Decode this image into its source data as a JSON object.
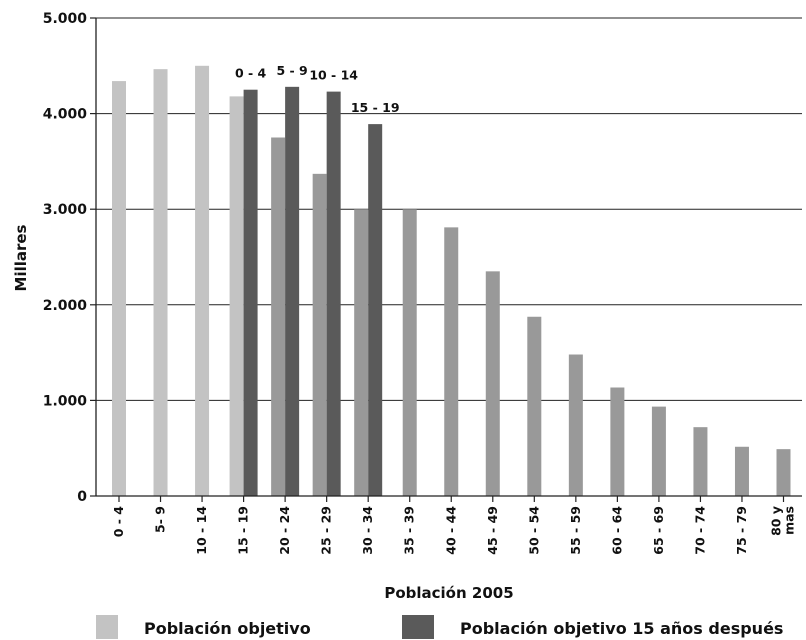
{
  "chart_data": {
    "type": "bar",
    "xlabel": "Población 2005",
    "ylabel": "Millares",
    "ylim": [
      0,
      5000
    ],
    "yticks": [
      0,
      1000,
      2000,
      3000,
      4000,
      5000
    ],
    "ytick_labels": [
      "0",
      "1.000",
      "2.000",
      "3.000",
      "4.000",
      "5.000"
    ],
    "grid": true,
    "legend_position": "bottom",
    "categories": [
      "0 - 4",
      "5- 9",
      "10 - 14",
      "15 - 19",
      "20 - 24",
      "25 - 29",
      "30 - 34",
      "35 - 39",
      "40 - 44",
      "45 - 49",
      "50 - 54",
      "55 - 59",
      "60 - 64",
      "65 - 69",
      "70 - 74",
      "75 - 79",
      "80 y mas"
    ],
    "series": [
      {
        "name": "Población objetivo",
        "values": [
          4340,
          4465,
          4500,
          4180,
          3750,
          3370,
          3000,
          3000,
          2810,
          2350,
          1875,
          1480,
          1135,
          935,
          720,
          515,
          490
        ],
        "colors": [
          "#c3c3c3",
          "#c3c3c3",
          "#c3c3c3",
          "#c3c3c3",
          "#999999",
          "#999999",
          "#999999",
          "#999999",
          "#999999",
          "#999999",
          "#999999",
          "#999999",
          "#999999",
          "#999999",
          "#999999",
          "#999999",
          "#999999"
        ]
      },
      {
        "name": "Población objetivo 15 años después",
        "values": [
          null,
          null,
          null,
          4250,
          4280,
          4230,
          3890,
          null,
          null,
          null,
          null,
          null,
          null,
          null,
          null,
          null,
          null
        ],
        "color": "#5a5a5a",
        "labels": [
          null,
          null,
          null,
          "0 - 4",
          "5 - 9",
          "10 - 14",
          "15 - 19",
          null,
          null,
          null,
          null,
          null,
          null,
          null,
          null,
          null,
          null
        ]
      }
    ],
    "legend": [
      {
        "label": "Población objetivo",
        "color": "#c3c3c3"
      },
      {
        "label": "Población objetivo 15 años después",
        "color": "#5a5a5a"
      }
    ]
  }
}
